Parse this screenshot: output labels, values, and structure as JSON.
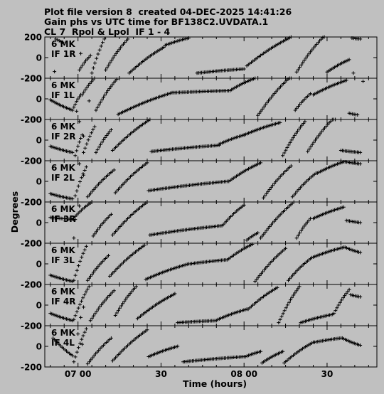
{
  "header": {
    "line1": "Plot file version 8  created 04-DEC-2025 14:41:26",
    "line2": "Gain phs vs UTC time for BF138C2.UVDATA.1",
    "line3": "CL 7  Rpol & Lpol  IF 1 - 4"
  },
  "chart_data": {
    "type": "scatter",
    "xlabel": "Time (hours)",
    "ylabel": "Degrees",
    "x_ticks": [
      "07 00",
      "30",
      "08 00",
      "30"
    ],
    "x_tick_minutes": [
      420,
      450,
      480,
      510
    ],
    "xlim_minutes": [
      408,
      528
    ],
    "ylim": [
      -200,
      200
    ],
    "y_ticks": [
      "200",
      "0",
      "-200"
    ],
    "marker": "+",
    "panels": [
      {
        "label1": "6 MK",
        "label2": "IF 1R",
        "segments": [
          {
            "x": [
              412.0,
              414.4,
              416.8,
              419.2
            ],
            "y": [
              180,
              150,
              160,
              120
            ]
          },
          {
            "x": [
              420.5,
              424.5
            ],
            "y": [
              -120,
              20
            ]
          },
          {
            "x": [
              425.0,
              429.5
            ],
            "y": [
              -150,
              180
            ]
          },
          {
            "x": [
              430.0,
              438.0
            ],
            "y": [
              -120,
              180
            ]
          },
          {
            "x": [
              438.5,
              451.0
            ],
            "y": [
              -150,
              100
            ]
          },
          {
            "x": [
              451.5,
              460.0
            ],
            "y": [
              120,
              190
            ]
          },
          {
            "x": [
              463.0,
              480.0
            ],
            "y": [
              -150,
              -110
            ]
          },
          {
            "x": [
              481.0,
              497.0
            ],
            "y": [
              -80,
              200
            ]
          },
          {
            "x": [
              499.0,
              509.0
            ],
            "y": [
              -140,
              210
            ]
          },
          {
            "x": [
              510.0,
              518.0
            ],
            "y": [
              -140,
              -20
            ]
          },
          {
            "x": [
              519.0,
              522.0
            ],
            "y": [
              190,
              180
            ]
          }
        ],
        "isolated": [
          {
            "x": 411.5,
            "y": -135
          },
          {
            "x": 421.0,
            "y": 40
          },
          {
            "x": 519.5,
            "y": -150
          }
        ]
      },
      {
        "label1": "6 MK",
        "label2": "IF 1L",
        "segments": [
          {
            "x": [
              410.0,
              418.0
            ],
            "y": [
              -10,
              -110
            ]
          },
          {
            "x": [
              418.5,
              421.0
            ],
            "y": [
              -80,
              40
            ]
          },
          {
            "x": [
              421.5,
              426.0
            ],
            "y": [
              40,
              200
            ]
          },
          {
            "x": [
              426.5,
              434.0
            ],
            "y": [
              -110,
              190
            ]
          },
          {
            "x": [
              434.5,
              454.0
            ],
            "y": [
              -150,
              60
            ]
          },
          {
            "x": [
              454.5,
              475.0
            ],
            "y": [
              60,
              80
            ]
          },
          {
            "x": [
              475.5,
              484.0
            ],
            "y": [
              90,
              200
            ]
          },
          {
            "x": [
              485.0,
              497.0
            ],
            "y": [
              -160,
              220
            ]
          },
          {
            "x": [
              498.5,
              504.0
            ],
            "y": [
              -110,
              50
            ]
          },
          {
            "x": [
              505.0,
              517.0
            ],
            "y": [
              40,
              180
            ]
          },
          {
            "x": [
              518.0,
              521.0
            ],
            "y": [
              -140,
              -155
            ]
          }
        ],
        "isolated": [
          {
            "x": 419.5,
            "y": -120
          },
          {
            "x": 424.0,
            "y": -20
          },
          {
            "x": 523.0,
            "y": 170
          }
        ]
      },
      {
        "label1": "6 MK",
        "label2": "IF 2R",
        "segments": [
          {
            "x": [
              410.0,
              418.0
            ],
            "y": [
              -60,
              -120
            ]
          },
          {
            "x": [
              419.0,
              421.5
            ],
            "y": [
              -150,
              50
            ]
          },
          {
            "x": [
              422.0,
              426.0
            ],
            "y": [
              -120,
              130
            ]
          },
          {
            "x": [
              426.5,
              432.0
            ],
            "y": [
              -120,
              100
            ]
          },
          {
            "x": [
              432.5,
              446.0
            ],
            "y": [
              -100,
              200
            ]
          },
          {
            "x": [
              446.5,
              471.0
            ],
            "y": [
              -110,
              -50
            ]
          },
          {
            "x": [
              471.0,
              480.0
            ],
            "y": [
              -40,
              50
            ]
          },
          {
            "x": [
              480.0,
              493.0
            ],
            "y": [
              50,
              170
            ]
          },
          {
            "x": [
              494.0,
              502.0
            ],
            "y": [
              -150,
              180
            ]
          },
          {
            "x": [
              503.0,
              513.0
            ],
            "y": [
              -110,
              230
            ]
          },
          {
            "x": [
              515.0,
              522.0
            ],
            "y": [
              -100,
              -120
            ]
          }
        ],
        "isolated": [
          {
            "x": 420.5,
            "y": 180
          },
          {
            "x": 422.0,
            "y": 40
          }
        ]
      },
      {
        "label1": "6 MK",
        "label2": "IF 2L",
        "segments": [
          {
            "x": [
              410.0,
              418.0
            ],
            "y": [
              -120,
              -170
            ]
          },
          {
            "x": [
              419.0,
              423.0
            ],
            "y": [
              -140,
              140
            ]
          },
          {
            "x": [
              423.5,
              433.0
            ],
            "y": [
              -150,
              110
            ]
          },
          {
            "x": [
              433.5,
              445.0
            ],
            "y": [
              -110,
              180
            ]
          },
          {
            "x": [
              445.5,
              474.0
            ],
            "y": [
              -90,
              0
            ]
          },
          {
            "x": [
              474.5,
              486.0
            ],
            "y": [
              0,
              180
            ]
          },
          {
            "x": [
              487.0,
              497.0
            ],
            "y": [
              -160,
              150
            ]
          },
          {
            "x": [
              497.5,
              506.0
            ],
            "y": [
              -150,
              80
            ]
          },
          {
            "x": [
              506.5,
              516.0
            ],
            "y": [
              80,
              190
            ]
          },
          {
            "x": [
              516.5,
              522.0
            ],
            "y": [
              190,
              170
            ]
          }
        ],
        "isolated": [
          {
            "x": 420.5,
            "y": 170
          },
          {
            "x": 422.0,
            "y": 60
          }
        ]
      },
      {
        "label1": "6 MK",
        "label2": "IF 3R",
        "segments": [
          {
            "x": [
              410.0,
              419.0
            ],
            "y": [
              50,
              30
            ]
          },
          {
            "x": [
              419.0,
              425.0
            ],
            "y": [
              60,
              200
            ]
          },
          {
            "x": [
              425.5,
              432.0
            ],
            "y": [
              -130,
              80
            ]
          },
          {
            "x": [
              432.5,
              445.0
            ],
            "y": [
              -120,
              200
            ]
          },
          {
            "x": [
              446.0,
              472.0
            ],
            "y": [
              -120,
              -30
            ]
          },
          {
            "x": [
              472.5,
              480.0
            ],
            "y": [
              -20,
              170
            ]
          },
          {
            "x": [
              481.0,
              485.0
            ],
            "y": [
              -170,
              -100
            ]
          },
          {
            "x": [
              486.0,
              498.0
            ],
            "y": [
              -150,
              200
            ]
          },
          {
            "x": [
              499.0,
              504.0
            ],
            "y": [
              -150,
              40
            ]
          },
          {
            "x": [
              505.0,
              516.0
            ],
            "y": [
              40,
              150
            ]
          },
          {
            "x": [
              517.0,
              522.0
            ],
            "y": [
              20,
              0
            ]
          }
        ],
        "isolated": [
          {
            "x": 418.5,
            "y": -150
          },
          {
            "x": 420.5,
            "y": 160
          }
        ]
      },
      {
        "label1": "6 MK",
        "label2": "IF 3L",
        "segments": [
          {
            "x": [
              410.0,
              418.0
            ],
            "y": [
              -110,
              -170
            ]
          },
          {
            "x": [
              418.5,
              423.0
            ],
            "y": [
              -160,
              170
            ]
          },
          {
            "x": [
              423.5,
              431.0
            ],
            "y": [
              -160,
              80
            ]
          },
          {
            "x": [
              431.5,
              444.0
            ],
            "y": [
              -120,
              180
            ]
          },
          {
            "x": [
              444.5,
              460.0
            ],
            "y": [
              -150,
              0
            ]
          },
          {
            "x": [
              460.5,
              474.0
            ],
            "y": [
              0,
              40
            ]
          },
          {
            "x": [
              474.5,
              483.0
            ],
            "y": [
              50,
              190
            ]
          },
          {
            "x": [
              484.0,
              495.0
            ],
            "y": [
              -170,
              150
            ]
          },
          {
            "x": [
              496.0,
              504.0
            ],
            "y": [
              -160,
              50
            ]
          },
          {
            "x": [
              504.5,
              516.0
            ],
            "y": [
              60,
              160
            ]
          },
          {
            "x": [
              516.5,
              522.0
            ],
            "y": [
              160,
              110
            ]
          }
        ],
        "isolated": []
      },
      {
        "label1": "6 MK",
        "label2": "IF 4R",
        "segments": [
          {
            "x": [
              410.0,
              418.0
            ],
            "y": [
              -80,
              -150
            ]
          },
          {
            "x": [
              418.5,
              424.0
            ],
            "y": [
              -140,
              180
            ]
          },
          {
            "x": [
              424.5,
              433.0
            ],
            "y": [
              -150,
              140
            ]
          },
          {
            "x": [
              433.5,
              441.0
            ],
            "y": [
              -100,
              180
            ]
          },
          {
            "x": [
              441.5,
              455.0
            ],
            "y": [
              -130,
              110
            ]
          },
          {
            "x": [
              456.0,
              470.0
            ],
            "y": [
              -170,
              -150
            ]
          },
          {
            "x": [
              470.5,
              481.0
            ],
            "y": [
              -140,
              -40
            ]
          },
          {
            "x": [
              481.5,
              492.0
            ],
            "y": [
              -40,
              170
            ]
          },
          {
            "x": [
              492.5,
              500.0
            ],
            "y": [
              -170,
              180
            ]
          },
          {
            "x": [
              500.5,
              512.0
            ],
            "y": [
              -170,
              -90
            ]
          },
          {
            "x": [
              512.5,
              518.0
            ],
            "y": [
              -80,
              150
            ]
          },
          {
            "x": [
              518.5,
              522.0
            ],
            "y": [
              100,
              80
            ]
          }
        ],
        "isolated": [
          {
            "x": 421.0,
            "y": -120
          },
          {
            "x": 422.0,
            "y": -20
          }
        ]
      },
      {
        "label1": "6 MK",
        "label2": "IF 4L",
        "segments": [
          {
            "x": [
              411.0,
              418.0
            ],
            "y": [
              80,
              -90
            ]
          },
          {
            "x": [
              418.5,
              423.0
            ],
            "y": [
              -150,
              170
            ]
          },
          {
            "x": [
              423.5,
              432.0
            ],
            "y": [
              -170,
              80
            ]
          },
          {
            "x": [
              432.5,
              445.0
            ],
            "y": [
              -140,
              160
            ]
          },
          {
            "x": [
              445.5,
              456.0
            ],
            "y": [
              -100,
              0
            ]
          },
          {
            "x": [
              458.0,
              480.0
            ],
            "y": [
              -150,
              -100
            ]
          },
          {
            "x": [
              480.5,
              486.0
            ],
            "y": [
              -100,
              -50
            ]
          },
          {
            "x": [
              486.5,
              494.0
            ],
            "y": [
              -160,
              -50
            ]
          },
          {
            "x": [
              494.5,
              505.0
            ],
            "y": [
              -160,
              40
            ]
          },
          {
            "x": [
              505.5,
              515.0
            ],
            "y": [
              40,
              80
            ]
          },
          {
            "x": [
              515.5,
              522.0
            ],
            "y": [
              80,
              10
            ]
          }
        ],
        "isolated": [
          {
            "x": 420.0,
            "y": 120
          },
          {
            "x": 421.5,
            "y": 20
          }
        ]
      }
    ]
  }
}
